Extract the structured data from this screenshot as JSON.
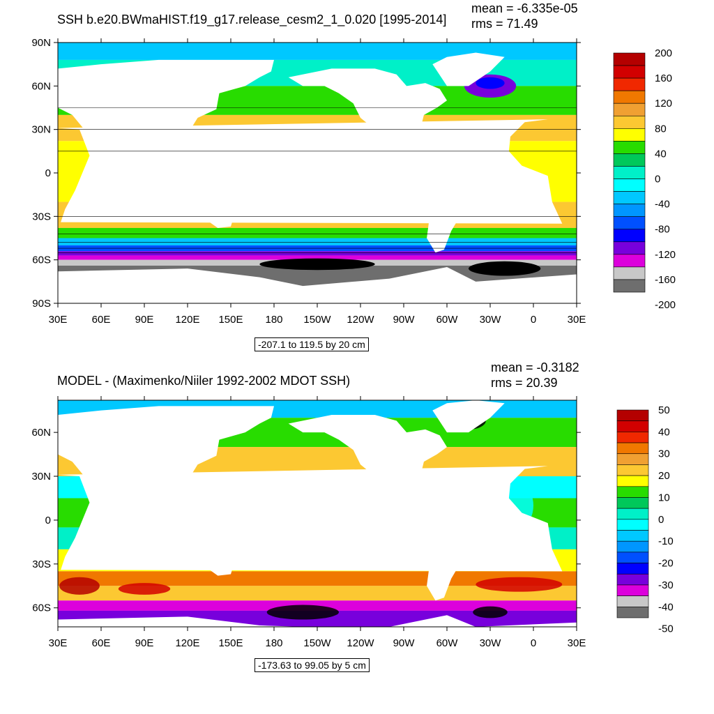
{
  "chart_data": [
    {
      "type": "heatmap",
      "title": "SSH b.e20.BWmaHIST.f19_g17.release_cesm2_1_0.020 [1995-2014]",
      "stats": {
        "mean": "mean = -6.335e-05",
        "rms": "rms = 71.49"
      },
      "xticks": [
        "30E",
        "60E",
        "90E",
        "120E",
        "150E",
        "180",
        "150W",
        "120W",
        "90W",
        "60W",
        "30W",
        "0",
        "30E"
      ],
      "yticks": [
        "90N",
        "60N",
        "30N",
        "0",
        "30S",
        "60S",
        "90S"
      ],
      "ylim": [
        -90,
        90
      ],
      "contour_caption": "-207.1 to 119.5 by 20 cm",
      "colorbar": {
        "labels": [
          "200",
          "160",
          "120",
          "80",
          "40",
          "0",
          "-40",
          "-80",
          "-120",
          "-160",
          "-200"
        ],
        "colors": [
          "#b40000",
          "#d20000",
          "#f02800",
          "#f07800",
          "#f0a032",
          "#fcc832",
          "#ffff00",
          "#28dc00",
          "#00c85a",
          "#00f0c8",
          "#00ffff",
          "#00c8ff",
          "#0096ff",
          "#0050ff",
          "#0000ff",
          "#7800dc",
          "#dc00dc",
          "#c8c8c8",
          "#6e6e6e"
        ]
      }
    },
    {
      "type": "heatmap",
      "title": "MODEL - (Maximenko/Niiler 1992-2002 MDOT SSH)",
      "stats": {
        "mean": "mean = -0.3182",
        "rms": "rms = 20.39"
      },
      "xticks": [
        "30E",
        "60E",
        "90E",
        "120E",
        "150E",
        "180",
        "150W",
        "120W",
        "90W",
        "60W",
        "30W",
        "0",
        "30E"
      ],
      "yticks": [
        "60N",
        "30N",
        "0",
        "30S",
        "60S"
      ],
      "ylim": [
        -73,
        82
      ],
      "contour_caption": "-173.63 to 99.05 by 5 cm",
      "colorbar": {
        "labels": [
          "50",
          "40",
          "30",
          "20",
          "10",
          "0",
          "-10",
          "-20",
          "-30",
          "-40",
          "-50"
        ],
        "colors": [
          "#b40000",
          "#d20000",
          "#f02800",
          "#f07800",
          "#f0a032",
          "#fcc832",
          "#ffff00",
          "#28dc00",
          "#00c85a",
          "#00f0c8",
          "#00ffff",
          "#00c8ff",
          "#0096ff",
          "#0050ff",
          "#0000ff",
          "#7800dc",
          "#dc00dc",
          "#c8c8c8",
          "#6e6e6e"
        ]
      }
    }
  ]
}
